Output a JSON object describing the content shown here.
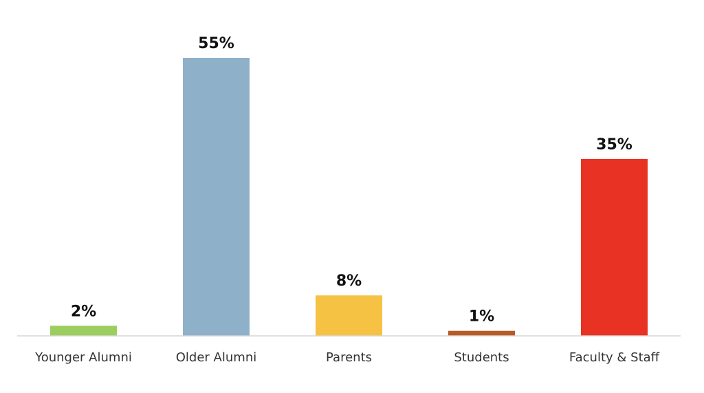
{
  "chart_data": {
    "type": "bar",
    "categories": [
      "Younger Alumni",
      "Older Alumni",
      "Parents",
      "Students",
      "Faculty & Staff"
    ],
    "values": [
      2,
      55,
      8,
      1,
      35
    ],
    "value_labels": [
      "2%",
      "55%",
      "8%",
      "1%",
      "35%"
    ],
    "colors": [
      "#9ccd5f",
      "#8eb0c9",
      "#f5c244",
      "#b85a25",
      "#e83223"
    ],
    "axis_color": "#d6d6d6",
    "ylim": [
      0,
      55
    ],
    "grid": false,
    "legend": "none"
  }
}
